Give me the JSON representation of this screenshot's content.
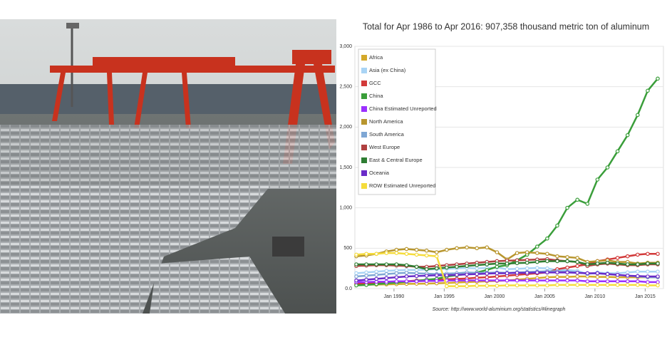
{
  "chart_data": {
    "type": "line",
    "title": "Total for Apr 1986 to Apr 2016: 907,358  thousand metric ton of aluminum",
    "source": "Source: http://www.world-aluminium.org/statistics/#linegraph",
    "x": [
      1986.25,
      1987.25,
      1988.25,
      1989.25,
      1990.25,
      1991.25,
      1992.25,
      1993.25,
      1994.25,
      1995.25,
      1996.25,
      1997.25,
      1998.25,
      1999.25,
      2000.25,
      2001.25,
      2002.25,
      2003.25,
      2004.25,
      2005.25,
      2006.25,
      2007.25,
      2008.25,
      2009.25,
      2010.25,
      2011.25,
      2012.25,
      2013.25,
      2014.25,
      2015.25,
      2016.25
    ],
    "xlim": [
      1986.25,
      2016.25
    ],
    "xticks": [
      {
        "value": 1990,
        "label": "Jan 1990"
      },
      {
        "value": 1995,
        "label": "Jan 1995"
      },
      {
        "value": 2000,
        "label": "Jan 2000"
      },
      {
        "value": 2005,
        "label": "Jan 2005"
      },
      {
        "value": 2010,
        "label": "Jan 2010"
      },
      {
        "value": 2015,
        "label": "Jan 2015"
      }
    ],
    "ylim": [
      0,
      3000
    ],
    "yticks": [
      {
        "value": 0,
        "label": "0.0"
      },
      500,
      {
        "value": 1000,
        "label": "1,000"
      },
      {
        "value": 1500,
        "label": "1,500"
      },
      {
        "value": 2000,
        "label": "2,000"
      },
      {
        "value": 2500,
        "label": "2,500"
      },
      {
        "value": 3000,
        "label": "3,000"
      }
    ],
    "grid": true,
    "legend": "top-left",
    "series": [
      {
        "name": "Africa",
        "color": "#d4a92a",
        "values": [
          45,
          48,
          50,
          52,
          55,
          58,
          60,
          62,
          65,
          70,
          75,
          80,
          85,
          90,
          95,
          100,
          110,
          120,
          130,
          140,
          145,
          145,
          150,
          150,
          145,
          145,
          140,
          140,
          140,
          140,
          140
        ]
      },
      {
        "name": "Asia (ex China)",
        "color": "#a9d4f5",
        "values": [
          190,
          200,
          210,
          220,
          225,
          230,
          230,
          235,
          240,
          245,
          250,
          255,
          250,
          255,
          260,
          240,
          245,
          250,
          255,
          250,
          230,
          230,
          220,
          180,
          200,
          190,
          190,
          200,
          210,
          210,
          210
        ]
      },
      {
        "name": "GCC",
        "color": "#d23a3a",
        "values": [
          60,
          65,
          70,
          75,
          80,
          90,
          100,
          105,
          110,
          115,
          120,
          125,
          135,
          140,
          150,
          160,
          170,
          180,
          190,
          200,
          240,
          260,
          280,
          300,
          340,
          360,
          380,
          400,
          420,
          430,
          430
        ]
      },
      {
        "name": "China",
        "color": "#3a9e3a",
        "values": [
          40,
          45,
          55,
          65,
          75,
          85,
          95,
          110,
          120,
          150,
          165,
          180,
          200,
          230,
          270,
          290,
          350,
          420,
          520,
          620,
          780,
          1000,
          1100,
          1050,
          1350,
          1500,
          1700,
          1900,
          2150,
          2450,
          2600
        ]
      },
      {
        "name": "China Estimated Unreported",
        "color": "#9b30ff",
        "values": [
          80,
          80,
          85,
          85,
          90,
          90,
          90,
          95,
          95,
          100,
          100,
          100,
          100,
          100,
          100,
          100,
          100,
          100,
          100,
          100,
          100,
          100,
          100,
          90,
          90,
          90,
          90,
          90,
          90,
          80,
          80
        ]
      },
      {
        "name": "North America",
        "color": "#b8962e",
        "values": [
          400,
          410,
          430,
          460,
          480,
          490,
          480,
          470,
          450,
          480,
          500,
          510,
          500,
          510,
          450,
          360,
          440,
          450,
          440,
          430,
          400,
          390,
          380,
          330,
          340,
          350,
          330,
          330,
          310,
          320,
          320
        ]
      },
      {
        "name": "South America",
        "color": "#7fa7d4",
        "values": [
          150,
          160,
          170,
          180,
          190,
          195,
          190,
          185,
          180,
          185,
          190,
          200,
          195,
          195,
          200,
          195,
          200,
          205,
          210,
          215,
          215,
          210,
          200,
          185,
          190,
          180,
          170,
          160,
          150,
          140,
          140
        ]
      },
      {
        "name": "West Europe",
        "color": "#b04040",
        "values": [
          280,
          285,
          290,
          290,
          285,
          280,
          270,
          270,
          280,
          290,
          300,
          310,
          320,
          330,
          340,
          345,
          350,
          355,
          360,
          365,
          350,
          340,
          330,
          280,
          300,
          310,
          300,
          290,
          290,
          300,
          300
        ]
      },
      {
        "name": "East & Central Europe",
        "color": "#2e7d32",
        "values": [
          300,
          300,
          300,
          300,
          300,
          290,
          270,
          240,
          250,
          260,
          270,
          280,
          290,
          300,
          310,
          310,
          315,
          320,
          330,
          340,
          340,
          340,
          330,
          300,
          310,
          320,
          310,
          300,
          300,
          310,
          310
        ]
      },
      {
        "name": "Oceania",
        "color": "#6a2bc8",
        "values": [
          100,
          110,
          120,
          130,
          140,
          150,
          155,
          160,
          165,
          165,
          170,
          175,
          180,
          185,
          190,
          190,
          195,
          195,
          200,
          200,
          200,
          200,
          195,
          190,
          190,
          180,
          170,
          160,
          155,
          150,
          150
        ]
      },
      {
        "name": "ROW Estimated Unreported",
        "color": "#f5dc3c",
        "values": [
          420,
          430,
          430,
          440,
          440,
          430,
          420,
          410,
          400,
          30,
          30,
          30,
          35,
          35,
          35,
          40,
          40,
          40,
          40,
          40,
          45,
          45,
          45,
          45,
          45,
          45,
          45,
          45,
          45,
          40,
          40
        ]
      }
    ]
  }
}
